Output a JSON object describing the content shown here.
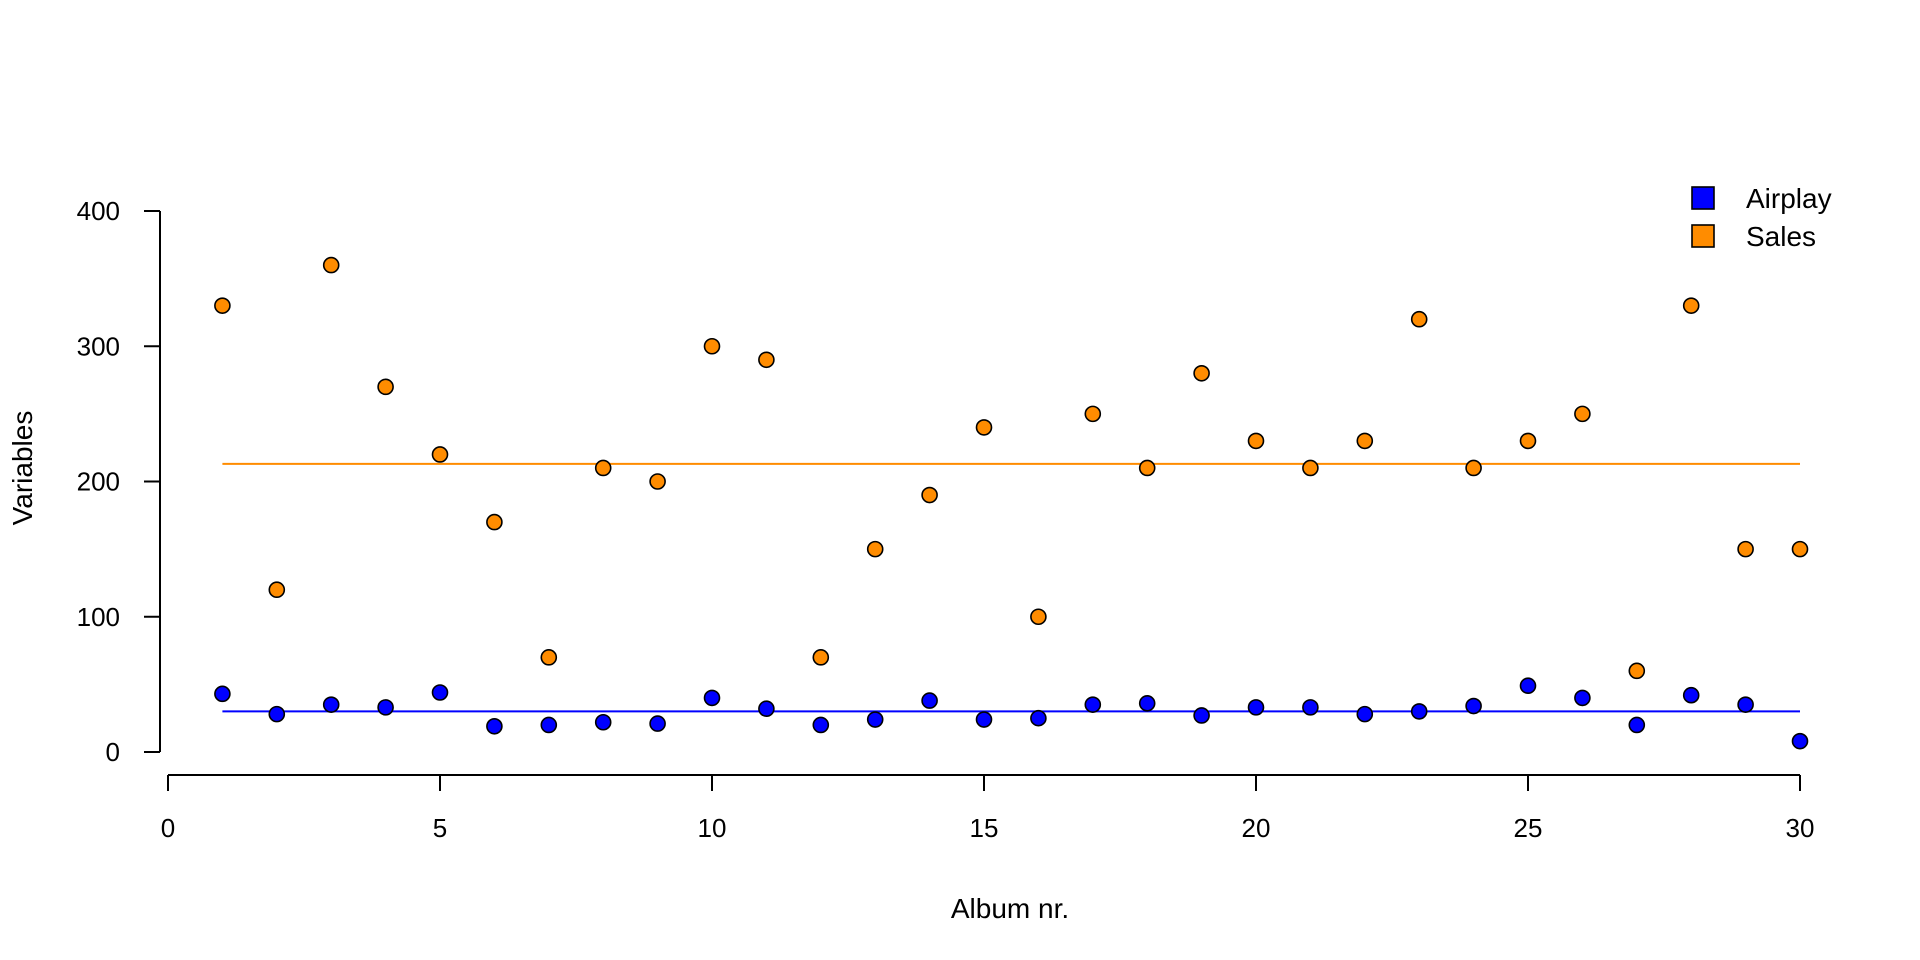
{
  "chart_data": {
    "type": "scatter",
    "title": "",
    "xlabel": "Album nr.",
    "ylabel": "Variables",
    "xlim": [
      0,
      30
    ],
    "ylim": [
      0,
      400
    ],
    "x_ticks": [
      0,
      5,
      10,
      15,
      20,
      25,
      30
    ],
    "y_ticks": [
      0,
      100,
      200,
      300,
      400
    ],
    "legend_position": "top-right",
    "grid": false,
    "x": [
      1,
      2,
      3,
      4,
      5,
      6,
      7,
      8,
      9,
      10,
      11,
      12,
      13,
      14,
      15,
      16,
      17,
      18,
      19,
      20,
      21,
      22,
      23,
      24,
      25,
      26,
      27,
      28,
      29,
      30
    ],
    "series": [
      {
        "name": "Airplay",
        "color": "#0000ff",
        "values": [
          43,
          28,
          35,
          33,
          44,
          19,
          20,
          22,
          21,
          40,
          32,
          20,
          24,
          38,
          24,
          25,
          35,
          36,
          27,
          33,
          33,
          28,
          30,
          34,
          49,
          40,
          20,
          42,
          35,
          8
        ],
        "mean_line": 30
      },
      {
        "name": "Sales",
        "color": "#ff8c00",
        "values": [
          330,
          120,
          360,
          270,
          220,
          170,
          70,
          210,
          200,
          300,
          290,
          70,
          150,
          190,
          240,
          100,
          250,
          210,
          280,
          230,
          210,
          230,
          320,
          210,
          230,
          250,
          60,
          330,
          150,
          150
        ],
        "mean_line": 213
      }
    ]
  }
}
